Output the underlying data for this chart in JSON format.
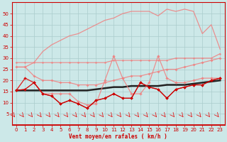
{
  "x": [
    0,
    1,
    2,
    3,
    4,
    5,
    6,
    7,
    8,
    9,
    10,
    11,
    12,
    13,
    14,
    15,
    16,
    17,
    18,
    19,
    20,
    21,
    22,
    23
  ],
  "series": {
    "upper_diagonal": [
      26,
      26,
      28,
      33,
      36,
      38,
      40,
      41,
      43,
      45,
      47,
      48,
      50,
      51,
      51,
      51,
      49,
      52,
      51,
      52,
      51,
      41,
      45,
      34
    ],
    "upper_flat": [
      28,
      28,
      28,
      28,
      28,
      28,
      28,
      28,
      28,
      28,
      28,
      29,
      29,
      29,
      29,
      29,
      29,
      29,
      30,
      30,
      30,
      30,
      30,
      32
    ],
    "mid_curve": [
      26,
      26,
      22,
      20,
      20,
      19,
      19,
      18,
      18,
      18,
      19,
      20,
      21,
      22,
      22,
      23,
      24,
      25,
      25,
      26,
      27,
      28,
      29,
      30
    ],
    "trend_line": [
      15.5,
      15.5,
      15.5,
      15.5,
      15.5,
      15.5,
      15.5,
      15.5,
      15.5,
      16,
      16.5,
      17,
      17,
      17.5,
      17.5,
      17.5,
      17.5,
      18,
      18,
      18,
      18.5,
      19,
      19.5,
      20
    ],
    "volatile1": [
      15.5,
      21,
      19,
      14,
      14,
      14,
      14,
      10.5,
      9,
      9.5,
      20,
      31,
      21,
      14,
      14,
      19,
      31,
      21,
      19,
      19,
      20,
      21,
      21,
      21
    ],
    "volatile2": [
      15.5,
      16,
      19,
      14,
      13,
      9.5,
      11,
      9.5,
      7.5,
      11,
      12,
      14,
      12,
      12,
      19,
      17,
      16,
      12,
      16,
      17,
      18,
      18,
      20,
      21
    ],
    "volatile3": [
      15.5,
      21,
      19,
      14,
      13,
      9.5,
      11,
      9.5,
      7.5,
      11,
      12,
      14,
      12,
      12,
      19,
      17,
      16,
      12,
      16,
      17,
      18,
      18,
      20,
      21
    ]
  },
  "xlabel": "Vent moyen/en rafales ( km/h )",
  "xlim": [
    -0.5,
    23.5
  ],
  "ylim": [
    0,
    55
  ],
  "yticks": [
    5,
    10,
    15,
    20,
    25,
    30,
    35,
    40,
    45,
    50
  ],
  "xticks": [
    0,
    1,
    2,
    3,
    4,
    5,
    6,
    7,
    8,
    9,
    10,
    11,
    12,
    13,
    14,
    15,
    16,
    17,
    18,
    19,
    20,
    21,
    22,
    23
  ],
  "bg_color": "#cce8e8",
  "grid_color": "#aacccc",
  "light_pink": "#f08080",
  "dark_red": "#cc0000",
  "arrow_color": "#dd2222"
}
